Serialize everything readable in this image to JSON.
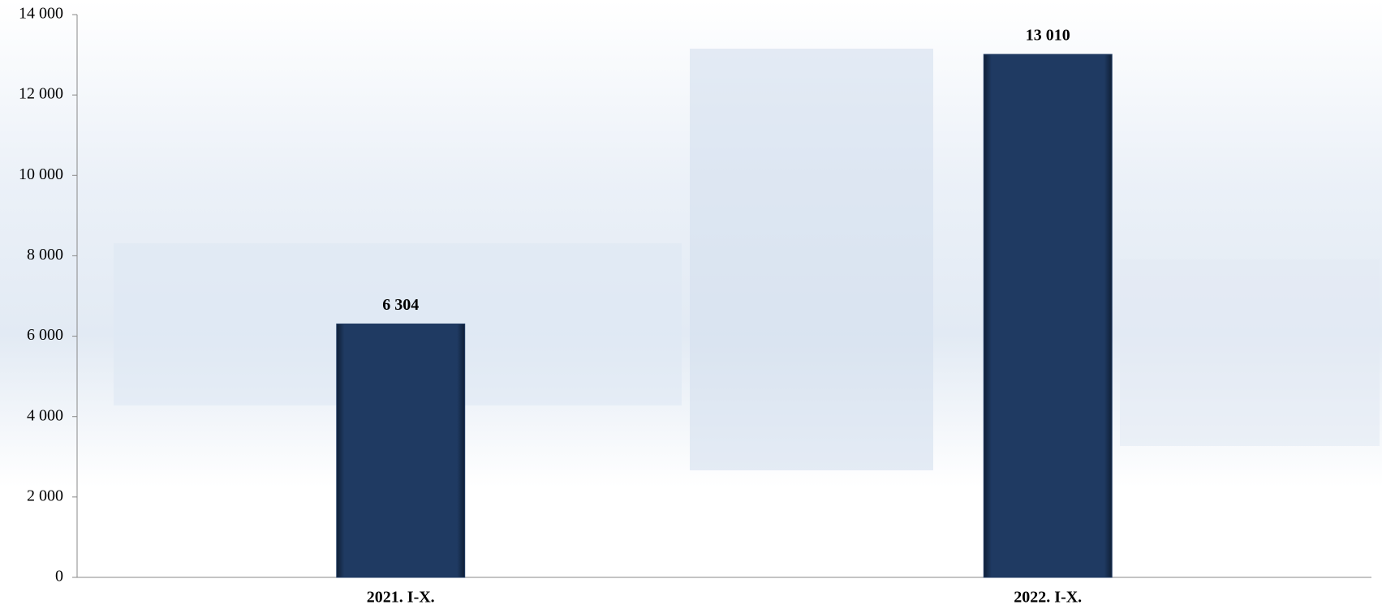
{
  "chart_data": {
    "type": "bar",
    "categories": [
      "2021. I-X.",
      "2022. I-X."
    ],
    "values": [
      6304,
      13010
    ],
    "value_labels": [
      "6 304",
      "13 010"
    ],
    "color": "#1f3a62",
    "ylim": [
      0,
      14000
    ],
    "yticks": [
      0,
      {
        "value": 2000,
        "label": "2 000"
      },
      {
        "value": 4000,
        "label": "4 000"
      },
      {
        "value": 6000,
        "label": "6 000"
      },
      {
        "value": 8000,
        "label": "8 000"
      },
      {
        "value": 10000,
        "label": "10 000"
      },
      {
        "value": 12000,
        "label": "12 000"
      },
      {
        "value": 14000,
        "label": "14 000"
      }
    ],
    "grid": false
  }
}
